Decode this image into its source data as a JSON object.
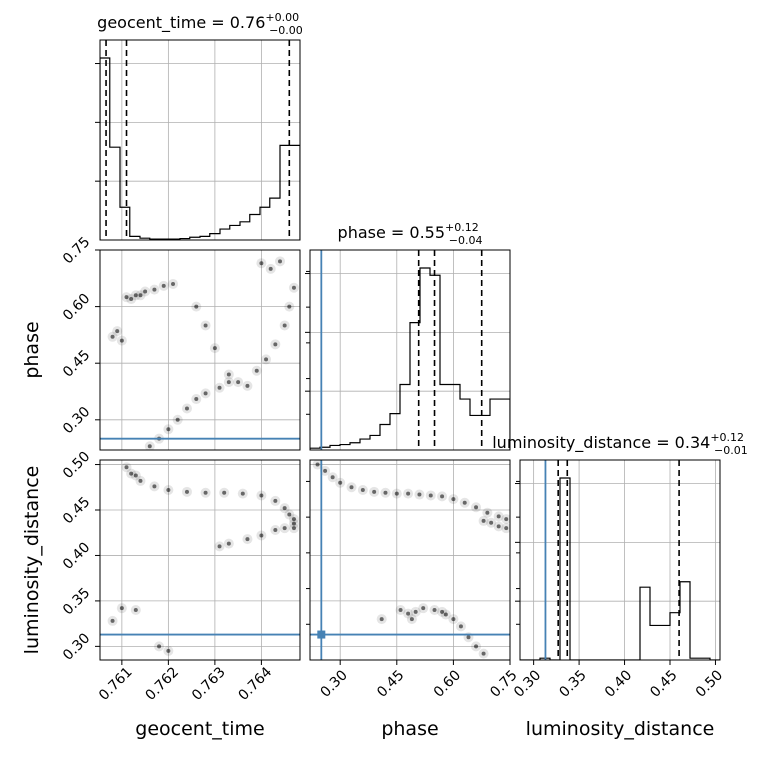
{
  "chart_data": {
    "type": "corner",
    "colors": {
      "truth": "#4682b4",
      "hist": "#000000",
      "grid": "#b0b0b0",
      "samples": "#000000"
    },
    "grid": true,
    "parameters": [
      "geocent_time",
      "phase",
      "luminosity_distance"
    ],
    "axis_labels": {
      "geocent_time": "geocent_time",
      "phase": "phase",
      "luminosity_distance": "luminosity_distance"
    },
    "ranges": {
      "geocent_time": [
        0.76053,
        0.76483
      ],
      "phase": [
        0.22,
        0.75
      ],
      "luminosity_distance": [
        0.285,
        0.505
      ]
    },
    "ticks": {
      "geocent_time": [
        0.761,
        0.762,
        0.763,
        0.764
      ],
      "phase": [
        0.3,
        0.45,
        0.6,
        0.75
      ],
      "luminosity_distance": [
        0.3,
        0.35,
        0.4,
        0.45,
        0.5
      ]
    },
    "tick_labels": {
      "geocent_time": [
        "0.761",
        "0.762",
        "0.763",
        "0.764"
      ],
      "phase": [
        "0.30",
        "0.45",
        "0.60",
        "0.75"
      ],
      "luminosity_distance": [
        "0.30",
        "0.35",
        "0.40",
        "0.45",
        "0.50"
      ]
    },
    "truths": {
      "geocent_time": null,
      "phase": 0.25,
      "luminosity_distance": 0.313
    },
    "titles": [
      {
        "param": "geocent_time",
        "text": "geocent_time = 0.76",
        "plus": "+0.00",
        "minus": "−0.00"
      },
      {
        "param": "phase",
        "text": "phase = 0.55",
        "plus": "+0.12",
        "minus": "−0.04"
      },
      {
        "param": "luminosity_distance",
        "text": "luminosity_distance = 0.34",
        "plus": "+0.12",
        "minus": "−0.01"
      }
    ],
    "quantiles": {
      "geocent_time": [
        0.76066,
        0.7611,
        0.7646
      ],
      "phase": [
        0.508,
        0.55,
        0.675
      ],
      "luminosity_distance": [
        0.327,
        0.337,
        0.46
      ]
    },
    "histograms": {
      "geocent_time": {
        "edges": [
          0.76053,
          0.76074,
          0.76096,
          0.76117,
          0.76139,
          0.7616,
          0.76182,
          0.76203,
          0.76225,
          0.76246,
          0.76268,
          0.76289,
          0.76311,
          0.76332,
          0.76354,
          0.76375,
          0.76397,
          0.76418,
          0.7644,
          0.76461,
          0.76483
        ],
        "counts": [
          1.0,
          0.51,
          0.18,
          0.02,
          0.01,
          0.005,
          0.005,
          0.005,
          0.008,
          0.015,
          0.02,
          0.035,
          0.06,
          0.08,
          0.1,
          0.14,
          0.18,
          0.23,
          0.52,
          0.52
        ]
      },
      "phase": {
        "edges": [
          0.22,
          0.2465,
          0.273,
          0.2995,
          0.326,
          0.3525,
          0.379,
          0.4055,
          0.432,
          0.4585,
          0.485,
          0.5115,
          0.538,
          0.5645,
          0.591,
          0.6175,
          0.644,
          0.6705,
          0.697,
          0.7235,
          0.75
        ],
        "counts": [
          0.01,
          0.015,
          0.025,
          0.03,
          0.04,
          0.06,
          0.08,
          0.14,
          0.2,
          0.36,
          0.7,
          1.0,
          0.96,
          0.36,
          0.36,
          0.28,
          0.19,
          0.19,
          0.28,
          0.28
        ]
      },
      "luminosity_distance": {
        "edges": [
          0.285,
          0.296,
          0.307,
          0.318,
          0.329,
          0.34,
          0.351,
          0.362,
          0.373,
          0.384,
          0.395,
          0.406,
          0.417,
          0.428,
          0.439,
          0.45,
          0.461,
          0.472,
          0.483,
          0.494,
          0.505
        ],
        "counts": [
          0.0,
          0.0,
          0.01,
          0.0,
          1.0,
          0.0,
          0.0,
          0.0,
          0.0,
          0.0,
          0.0,
          0.0,
          0.4,
          0.19,
          0.19,
          0.26,
          0.43,
          0.01,
          0.01,
          0.0
        ]
      }
    },
    "samples": {
      "geocent_time_vs_phase": [
        [
          0.7611,
          0.625
        ],
        [
          0.7613,
          0.63
        ],
        [
          0.7615,
          0.64
        ],
        [
          0.7617,
          0.645
        ],
        [
          0.7619,
          0.655
        ],
        [
          0.7621,
          0.66
        ],
        [
          0.7626,
          0.6
        ],
        [
          0.7628,
          0.55
        ],
        [
          0.763,
          0.49
        ],
        [
          0.7633,
          0.42
        ],
        [
          0.7635,
          0.4
        ],
        [
          0.7637,
          0.39
        ],
        [
          0.7624,
          0.33
        ],
        [
          0.7626,
          0.355
        ],
        [
          0.7628,
          0.37
        ],
        [
          0.7631,
          0.385
        ],
        [
          0.7633,
          0.4
        ],
        [
          0.7622,
          0.3
        ],
        [
          0.762,
          0.275
        ],
        [
          0.7618,
          0.25
        ],
        [
          0.7616,
          0.23
        ],
        [
          0.7639,
          0.43
        ],
        [
          0.7641,
          0.46
        ],
        [
          0.7643,
          0.5
        ],
        [
          0.7645,
          0.55
        ],
        [
          0.7646,
          0.6
        ],
        [
          0.7647,
          0.65
        ],
        [
          0.7642,
          0.7
        ],
        [
          0.764,
          0.715
        ],
        [
          0.7644,
          0.72
        ],
        [
          0.7608,
          0.52
        ],
        [
          0.761,
          0.51
        ],
        [
          0.7609,
          0.535
        ],
        [
          0.7612,
          0.62
        ],
        [
          0.7614,
          0.63
        ]
      ],
      "geocent_time_vs_luminosity_distance": [
        [
          0.7612,
          0.49
        ],
        [
          0.7614,
          0.482
        ],
        [
          0.7617,
          0.476
        ],
        [
          0.762,
          0.472
        ],
        [
          0.7624,
          0.47
        ],
        [
          0.7628,
          0.469
        ],
        [
          0.7632,
          0.469
        ],
        [
          0.7636,
          0.468
        ],
        [
          0.764,
          0.466
        ],
        [
          0.7643,
          0.46
        ],
        [
          0.7645,
          0.452
        ],
        [
          0.7646,
          0.445
        ],
        [
          0.7647,
          0.44
        ],
        [
          0.7647,
          0.435
        ],
        [
          0.7643,
          0.428
        ],
        [
          0.764,
          0.422
        ],
        [
          0.7637,
          0.418
        ],
        [
          0.7633,
          0.413
        ],
        [
          0.7631,
          0.41
        ],
        [
          0.7611,
          0.497
        ],
        [
          0.7613,
          0.488
        ],
        [
          0.762,
          0.295
        ],
        [
          0.7618,
          0.3
        ],
        [
          0.761,
          0.342
        ],
        [
          0.7608,
          0.328
        ],
        [
          0.7613,
          0.34
        ],
        [
          0.7645,
          0.43
        ],
        [
          0.7647,
          0.43
        ]
      ],
      "phase_vs_luminosity_distance": [
        [
          0.24,
          0.5
        ],
        [
          0.26,
          0.493
        ],
        [
          0.28,
          0.486
        ],
        [
          0.3,
          0.48
        ],
        [
          0.33,
          0.475
        ],
        [
          0.36,
          0.472
        ],
        [
          0.39,
          0.47
        ],
        [
          0.42,
          0.469
        ],
        [
          0.45,
          0.468
        ],
        [
          0.48,
          0.468
        ],
        [
          0.51,
          0.467
        ],
        [
          0.54,
          0.466
        ],
        [
          0.57,
          0.465
        ],
        [
          0.6,
          0.462
        ],
        [
          0.63,
          0.458
        ],
        [
          0.66,
          0.453
        ],
        [
          0.69,
          0.447
        ],
        [
          0.72,
          0.443
        ],
        [
          0.74,
          0.44
        ],
        [
          0.74,
          0.43
        ],
        [
          0.72,
          0.432
        ],
        [
          0.7,
          0.436
        ],
        [
          0.68,
          0.438
        ],
        [
          0.46,
          0.34
        ],
        [
          0.48,
          0.336
        ],
        [
          0.5,
          0.338
        ],
        [
          0.52,
          0.342
        ],
        [
          0.55,
          0.34
        ],
        [
          0.58,
          0.335
        ],
        [
          0.6,
          0.33
        ],
        [
          0.62,
          0.322
        ],
        [
          0.64,
          0.31
        ],
        [
          0.66,
          0.3
        ],
        [
          0.68,
          0.292
        ],
        [
          0.57,
          0.338
        ],
        [
          0.49,
          0.33
        ],
        [
          0.41,
          0.33
        ]
      ]
    }
  }
}
